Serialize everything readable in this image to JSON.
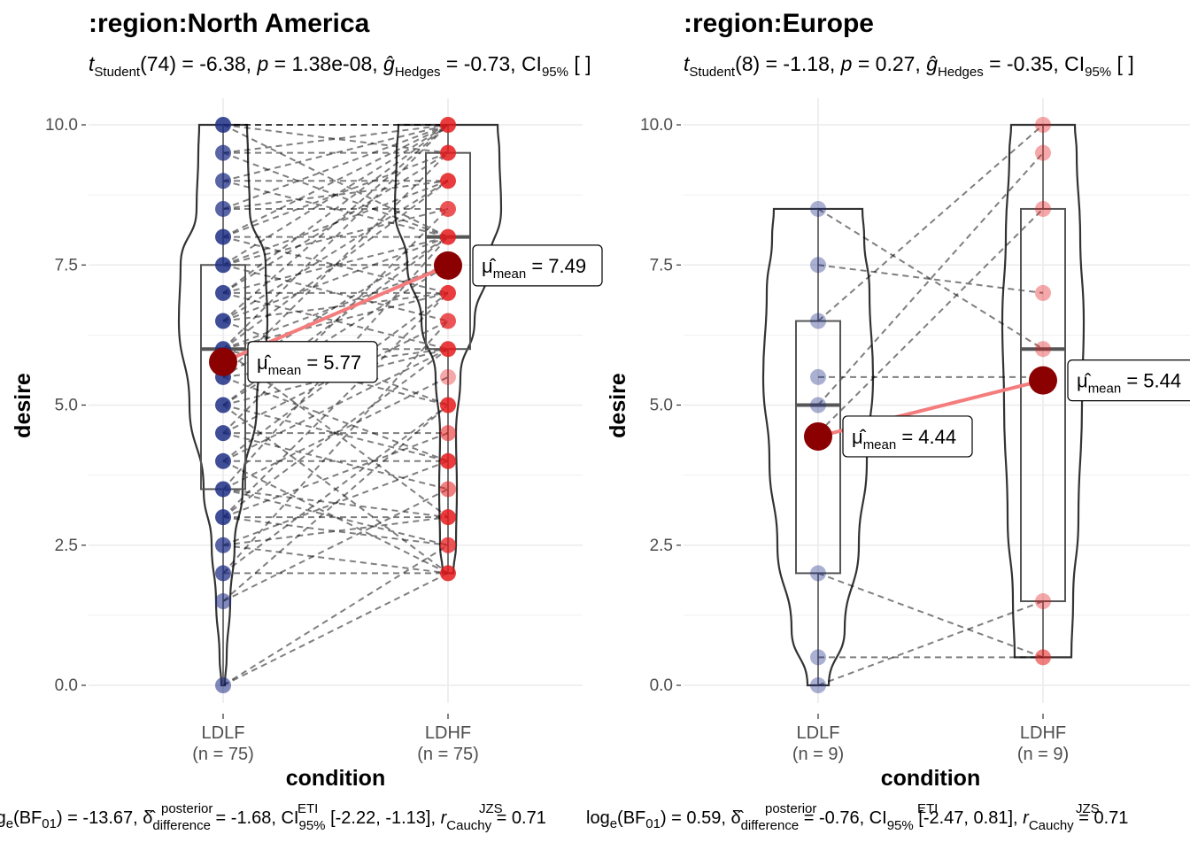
{
  "chart_data": [
    {
      "type": "violin-box-paired",
      "title": ":region:North America",
      "stat_text": {
        "df": "74",
        "t": "-6.38",
        "p": "1.38e-08",
        "g": "-0.73"
      },
      "xlabel": "condition",
      "ylabel": "desire",
      "ylim": [
        0,
        10
      ],
      "y_ticks": [
        "0.0",
        "2.5",
        "5.0",
        "7.5",
        "10.0"
      ],
      "categories": [
        "LDLF",
        "LDHF"
      ],
      "n_labels": [
        "(n = 75)",
        "(n = 75)"
      ],
      "colors": {
        "LDLF": "#1f2f85",
        "LDHF": "#e41a1c",
        "mean_point": "#8b0000",
        "mean_line": "#f47c7c"
      },
      "means": [
        5.77,
        7.49
      ],
      "mean_labels": [
        "5.77",
        "7.49"
      ],
      "box": [
        {
          "q1": 3.5,
          "median": 6.0,
          "q3": 7.5,
          "min": 0.0,
          "max": 10.0
        },
        {
          "q1": 6.0,
          "median": 8.0,
          "q3": 9.5,
          "min": 2.0,
          "max": 10.0
        }
      ],
      "pairs": [
        [
          0.0,
          2.5
        ],
        [
          0.0,
          2.0
        ],
        [
          1.5,
          3.5
        ],
        [
          2.0,
          2.0
        ],
        [
          2.0,
          5.0
        ],
        [
          2.5,
          4.0
        ],
        [
          3.0,
          3.0
        ],
        [
          3.0,
          4.5
        ],
        [
          3.0,
          6.0
        ],
        [
          3.5,
          2.5
        ],
        [
          3.5,
          5.5
        ],
        [
          4.0,
          4.0
        ],
        [
          4.0,
          7.0
        ],
        [
          4.5,
          3.5
        ],
        [
          4.5,
          6.5
        ],
        [
          5.0,
          2.0
        ],
        [
          5.0,
          6.0
        ],
        [
          5.0,
          8.0
        ],
        [
          5.5,
          9.5
        ],
        [
          5.5,
          6.0
        ],
        [
          6.0,
          6.0
        ],
        [
          6.0,
          7.5
        ],
        [
          6.0,
          9.0
        ],
        [
          6.5,
          7.0
        ],
        [
          6.5,
          10.0
        ],
        [
          6.5,
          5.0
        ],
        [
          7.0,
          7.0
        ],
        [
          7.0,
          8.0
        ],
        [
          7.0,
          9.5
        ],
        [
          7.5,
          7.5
        ],
        [
          7.5,
          10.0
        ],
        [
          7.5,
          8.5
        ],
        [
          8.0,
          8.0
        ],
        [
          8.0,
          10.0
        ],
        [
          8.5,
          9.0
        ],
        [
          9.0,
          9.0
        ],
        [
          9.0,
          10.0
        ],
        [
          9.5,
          9.5
        ],
        [
          9.5,
          10.0
        ],
        [
          10.0,
          10.0
        ],
        [
          10.0,
          10.0
        ],
        [
          10.0,
          9.5
        ],
        [
          6.0,
          3.0
        ],
        [
          5.5,
          4.0
        ],
        [
          4.0,
          2.0
        ],
        [
          3.0,
          2.5
        ],
        [
          2.5,
          3.0
        ],
        [
          6.5,
          8.0
        ],
        [
          7.0,
          6.0
        ],
        [
          8.0,
          7.0
        ],
        [
          4.5,
          8.5
        ],
        [
          5.0,
          7.5
        ],
        [
          2.0,
          6.5
        ],
        [
          3.5,
          8.0
        ],
        [
          6.0,
          10.0
        ],
        [
          7.5,
          6.5
        ],
        [
          8.5,
          10.0
        ],
        [
          9.0,
          8.0
        ],
        [
          1.5,
          5.0
        ],
        [
          3.0,
          7.0
        ],
        [
          4.0,
          6.0
        ],
        [
          5.5,
          8.0
        ],
        [
          6.5,
          9.0
        ],
        [
          7.0,
          10.0
        ],
        [
          8.0,
          9.5
        ],
        [
          5.0,
          4.0
        ],
        [
          6.0,
          5.0
        ],
        [
          4.5,
          4.5
        ],
        [
          3.5,
          3.0
        ],
        [
          2.5,
          2.0
        ],
        [
          7.5,
          9.0
        ],
        [
          9.5,
          8.0
        ],
        [
          10.0,
          8.0
        ],
        [
          8.5,
          8.5
        ],
        [
          6.0,
          7.0
        ]
      ]
    },
    {
      "type": "violin-box-paired",
      "title": ":region:Europe",
      "stat_text": {
        "df": "8",
        "t": "-1.18",
        "p": "0.27",
        "g": "-0.35"
      },
      "xlabel": "condition",
      "ylabel": "desire",
      "ylim": [
        0,
        10
      ],
      "y_ticks": [
        "0.0",
        "2.5",
        "5.0",
        "7.5",
        "10.0"
      ],
      "categories": [
        "LDLF",
        "LDHF"
      ],
      "n_labels": [
        "(n = 9)",
        "(n = 9)"
      ],
      "colors": {
        "LDLF": "#1f2f85",
        "LDHF": "#e41a1c",
        "mean_point": "#8b0000",
        "mean_line": "#f47c7c"
      },
      "means": [
        4.44,
        5.44
      ],
      "mean_labels": [
        "4.44",
        "5.44"
      ],
      "box": [
        {
          "q1": 2.0,
          "median": 5.0,
          "q3": 6.5,
          "min": 0.0,
          "max": 8.5
        },
        {
          "q1": 1.5,
          "median": 6.0,
          "q3": 8.5,
          "min": 0.5,
          "max": 10.0
        }
      ],
      "pairs": [
        [
          0.0,
          1.5
        ],
        [
          0.5,
          0.5
        ],
        [
          2.0,
          0.5
        ],
        [
          4.5,
          8.5
        ],
        [
          5.0,
          9.5
        ],
        [
          5.5,
          5.5
        ],
        [
          6.5,
          10.0
        ],
        [
          7.5,
          7.0
        ],
        [
          8.5,
          6.0
        ]
      ]
    }
  ],
  "footer": {
    "left": {
      "bf": "-13.67",
      "delta": "-1.68",
      "ci": "[-2.22, -1.13]",
      "r": "0.71"
    },
    "right": {
      "bf": "0.59",
      "delta": "-0.76",
      "ci": "[-2.47, 0.81]",
      "r": "0.71"
    }
  }
}
